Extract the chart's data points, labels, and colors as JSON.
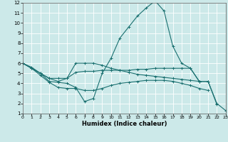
{
  "xlabel": "Humidex (Indice chaleur)",
  "xlim": [
    0,
    23
  ],
  "ylim": [
    1,
    12
  ],
  "yticks": [
    1,
    2,
    3,
    4,
    5,
    6,
    7,
    8,
    9,
    10,
    11,
    12
  ],
  "xticks": [
    0,
    1,
    2,
    3,
    4,
    5,
    6,
    7,
    8,
    9,
    10,
    11,
    12,
    13,
    14,
    15,
    16,
    17,
    18,
    19,
    20,
    21,
    22,
    23
  ],
  "background_color": "#cce9e9",
  "line_color": "#1a7070",
  "grid_color": "#ffffff",
  "line1_x": [
    0,
    1,
    2,
    3,
    4,
    5,
    6,
    7,
    8,
    9,
    10,
    11,
    12,
    13,
    14,
    15,
    16,
    17,
    18,
    19,
    20,
    21,
    22,
    23
  ],
  "line1_y": [
    6.0,
    5.5,
    5.0,
    4.2,
    4.1,
    4.0,
    3.6,
    2.2,
    2.5,
    5.0,
    6.5,
    8.5,
    9.6,
    10.7,
    11.5,
    12.2,
    11.2,
    7.7,
    6.0,
    5.5,
    4.2,
    4.2,
    2.0,
    1.3
  ],
  "line2_x": [
    0,
    1,
    2,
    3,
    4,
    5,
    6,
    7,
    8,
    9,
    10,
    11,
    12,
    13,
    14,
    15,
    16,
    17,
    18,
    19,
    20,
    21,
    22
  ],
  "line2_y": [
    6.0,
    5.5,
    5.0,
    4.5,
    4.5,
    4.5,
    5.1,
    5.2,
    5.2,
    5.3,
    5.3,
    5.3,
    5.3,
    5.4,
    5.4,
    5.5,
    5.5,
    5.5,
    5.5,
    5.5,
    4.2,
    4.2,
    1.9
  ],
  "line3_x": [
    0,
    1,
    2,
    3,
    4,
    5,
    6,
    7,
    8,
    9,
    10,
    11,
    12,
    13,
    14,
    15,
    16,
    17,
    18,
    19,
    20,
    21
  ],
  "line3_y": [
    6.0,
    5.6,
    5.0,
    4.5,
    4.2,
    4.5,
    6.0,
    6.0,
    6.0,
    5.8,
    5.5,
    5.3,
    5.1,
    4.9,
    4.8,
    4.7,
    4.6,
    4.5,
    4.4,
    4.3,
    4.2,
    4.2
  ],
  "line4_x": [
    0,
    1,
    2,
    3,
    4,
    5,
    6,
    7,
    8,
    9,
    10,
    11,
    12,
    13,
    14,
    15,
    16,
    17,
    18,
    19,
    20,
    21
  ],
  "line4_y": [
    6.0,
    5.5,
    4.8,
    4.1,
    3.6,
    3.5,
    3.5,
    3.3,
    3.3,
    3.5,
    3.8,
    4.0,
    4.1,
    4.2,
    4.3,
    4.3,
    4.3,
    4.2,
    4.0,
    3.8,
    3.5,
    3.3
  ]
}
